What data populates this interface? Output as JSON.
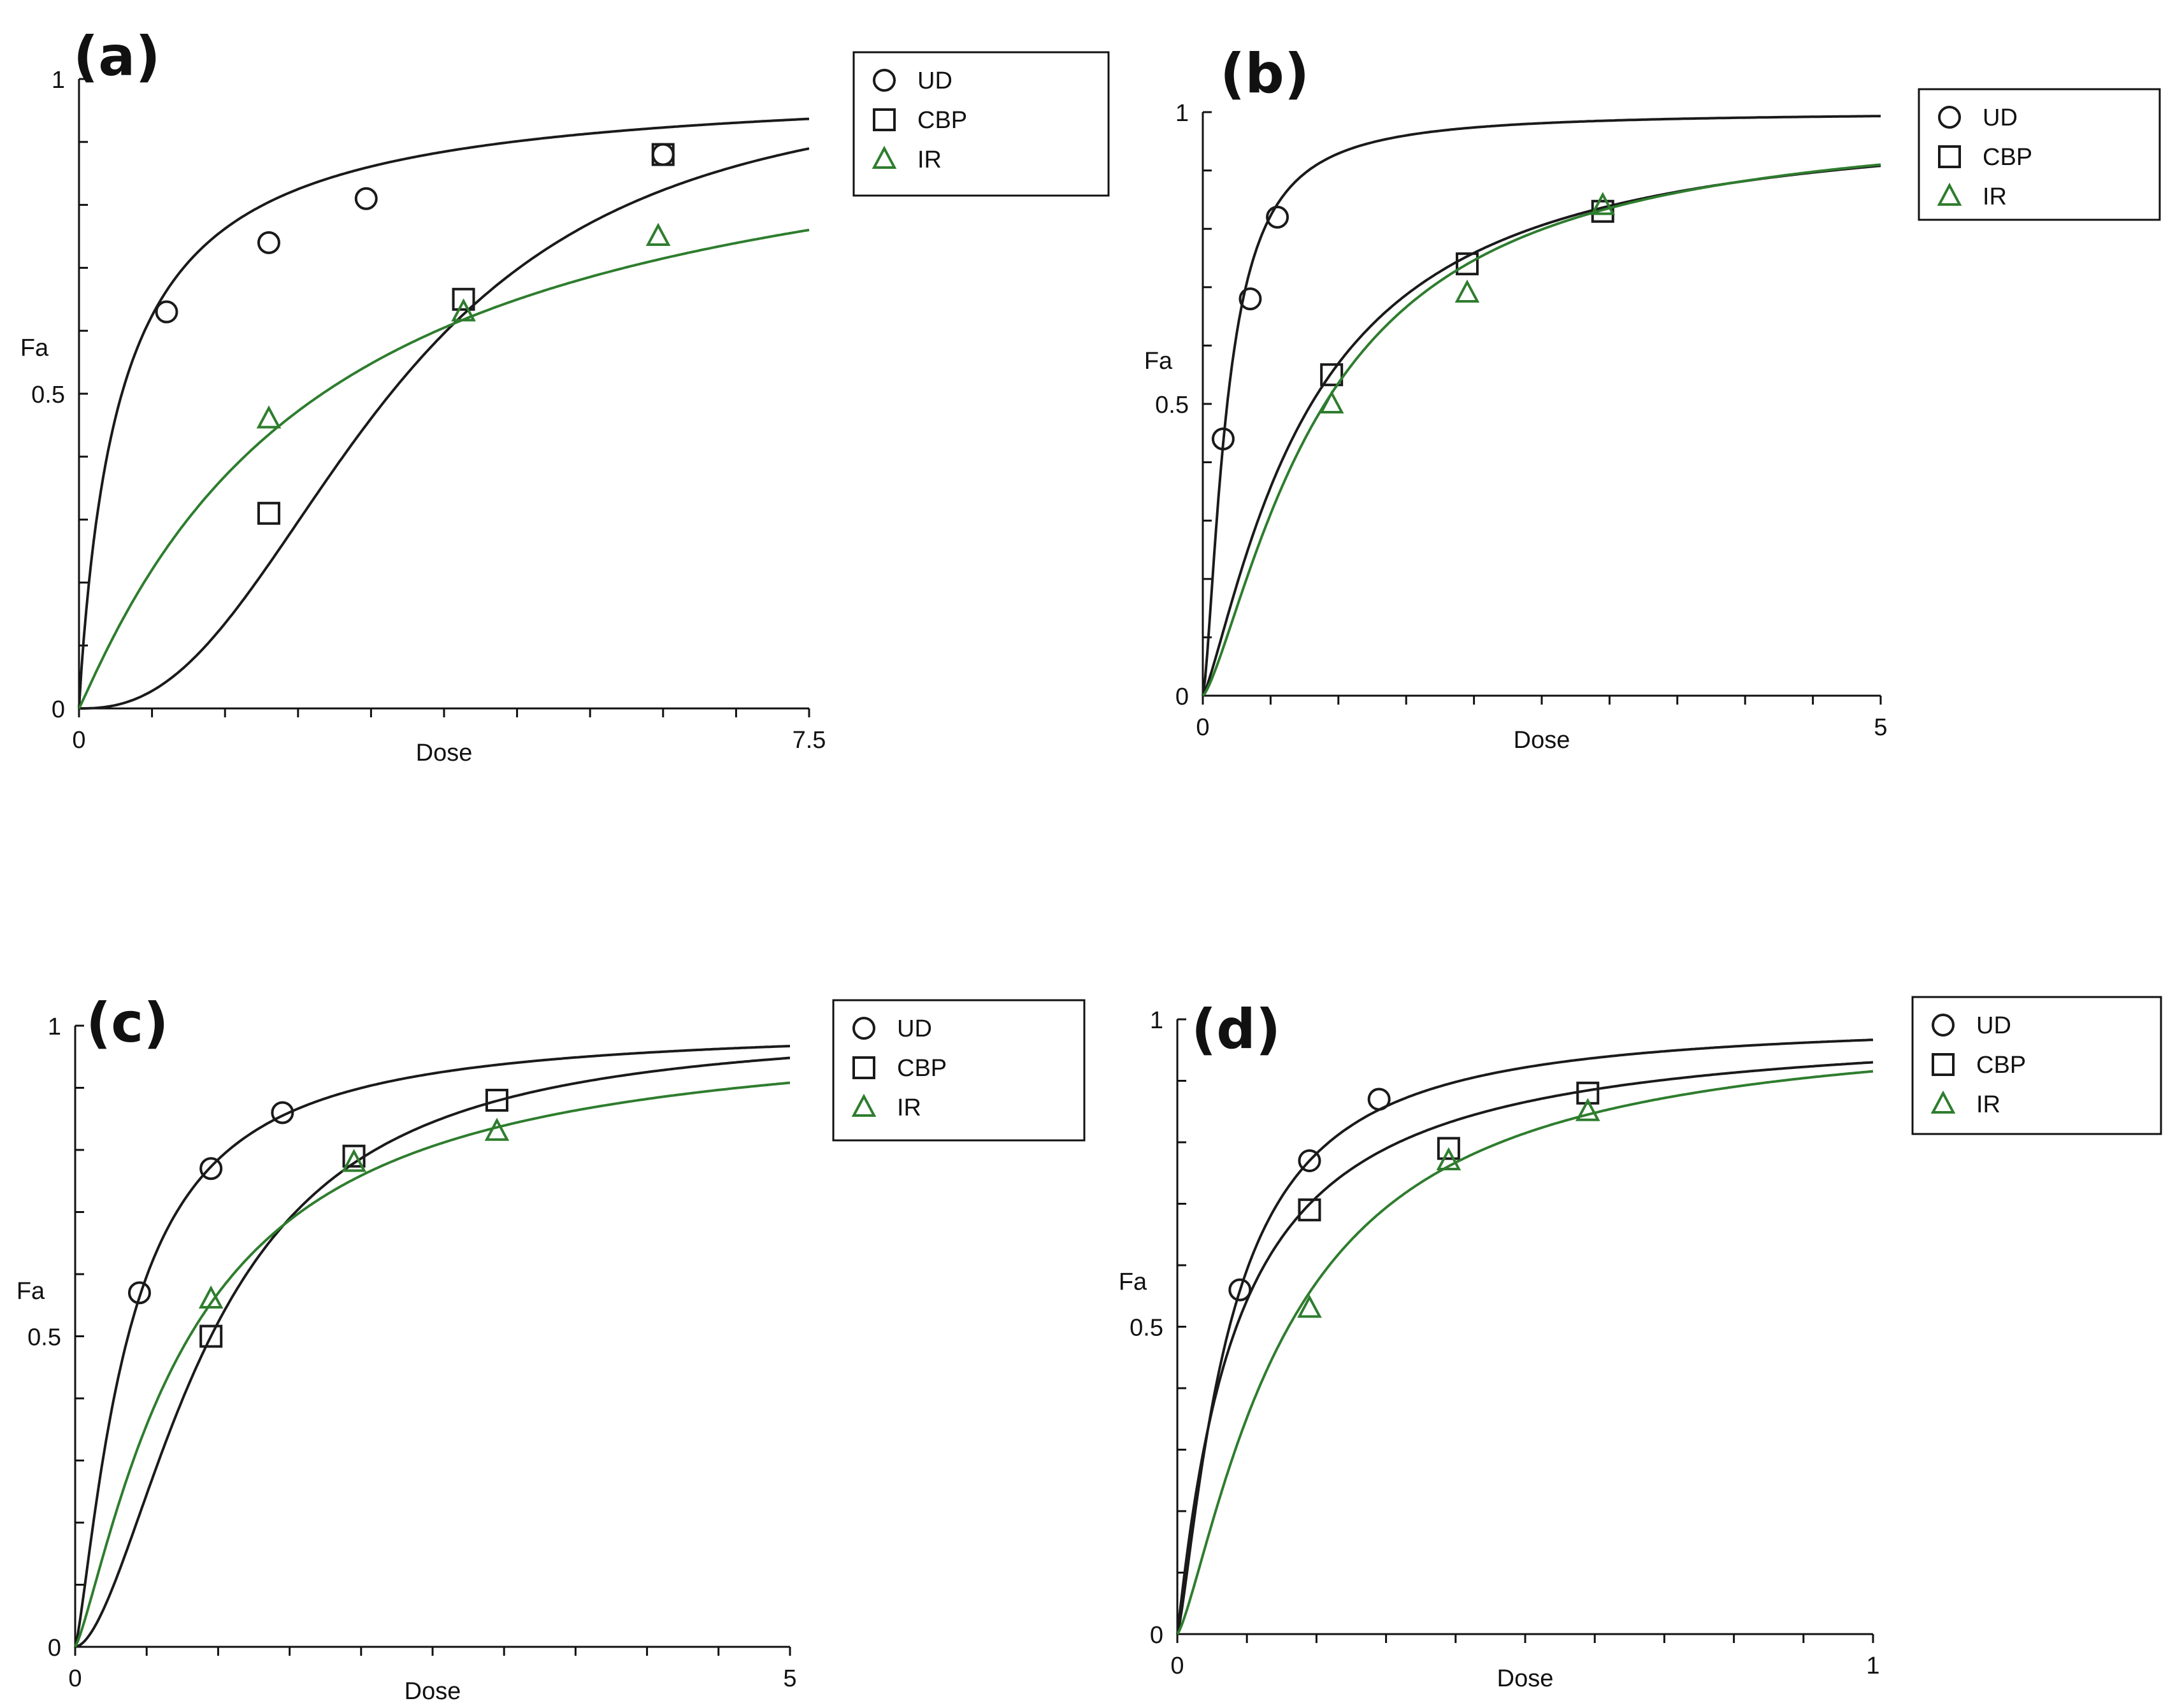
{
  "colors": {
    "black_curve": "#1a1a1a",
    "green_curve": "#2e7d2e",
    "axis": "#111111"
  },
  "chart_data": [
    {
      "type": "line",
      "panel_label": "(a)",
      "xlabel": "Dose",
      "ylabel": "Fa",
      "xlim": [
        0,
        7.5
      ],
      "ylim": [
        0,
        1
      ],
      "x_ticks": [
        "0",
        "7.5"
      ],
      "y_ticks": [
        "0",
        "0.5",
        "1"
      ],
      "legend_position": "top-right",
      "grid": false,
      "series": [
        {
          "name": "UD",
          "marker": "circle",
          "color": "#1a1a1a",
          "x": [
            0.9,
            1.95,
            2.95,
            6.0
          ],
          "y": [
            0.63,
            0.74,
            0.81,
            0.88
          ],
          "fit": {
            "dm": 0.44,
            "m": 0.95
          }
        },
        {
          "name": "CBP",
          "marker": "square",
          "color": "#1a1a1a",
          "x": [
            1.95,
            3.95,
            6.0
          ],
          "y": [
            0.31,
            0.65,
            0.88
          ],
          "fit": {
            "dm": 3.2,
            "m": 2.45
          }
        },
        {
          "name": "IR",
          "marker": "triangle",
          "color": "#2e7d2e",
          "x": [
            1.95,
            3.95,
            5.95
          ],
          "y": [
            0.46,
            0.63,
            0.75
          ],
          "fit": {
            "dm": 2.5,
            "m": 1.05
          }
        }
      ]
    },
    {
      "type": "line",
      "panel_label": "(b)",
      "xlabel": "Dose",
      "ylabel": "Fa",
      "xlim": [
        0,
        5
      ],
      "ylim": [
        0,
        1
      ],
      "x_ticks": [
        "0",
        "5"
      ],
      "y_ticks": [
        "0",
        "0.5",
        "1"
      ],
      "legend_position": "top-right",
      "grid": false,
      "series": [
        {
          "name": "UD",
          "marker": "circle",
          "color": "#1a1a1a",
          "x": [
            0.15,
            0.35,
            0.55
          ],
          "y": [
            0.44,
            0.68,
            0.82
          ],
          "fit": {
            "dm": 0.18,
            "m": 1.5
          }
        },
        {
          "name": "CBP",
          "marker": "square",
          "color": "#1a1a1a",
          "x": [
            0.95,
            1.95,
            2.95
          ],
          "y": [
            0.55,
            0.74,
            0.83
          ],
          "fit": {
            "dm": 0.8,
            "m": 1.25
          }
        },
        {
          "name": "IR",
          "marker": "triangle",
          "color": "#2e7d2e",
          "x": [
            0.95,
            1.95,
            2.95
          ],
          "y": [
            0.5,
            0.69,
            0.84
          ],
          "fit": {
            "dm": 0.9,
            "m": 1.35
          }
        }
      ]
    },
    {
      "type": "line",
      "panel_label": "(c)",
      "xlabel": "Dose",
      "ylabel": "Fa",
      "xlim": [
        0,
        5
      ],
      "ylim": [
        0,
        1
      ],
      "x_ticks": [
        "0",
        "5"
      ],
      "y_ticks": [
        "0",
        "0.5",
        "1"
      ],
      "legend_position": "top-right",
      "grid": false,
      "series": [
        {
          "name": "UD",
          "marker": "circle",
          "color": "#1a1a1a",
          "x": [
            0.45,
            0.95,
            1.45
          ],
          "y": [
            0.57,
            0.77,
            0.86
          ],
          "fit": {
            "dm": 0.37,
            "m": 1.3
          }
        },
        {
          "name": "CBP",
          "marker": "square",
          "color": "#1a1a1a",
          "x": [
            0.95,
            1.95,
            2.95
          ],
          "y": [
            0.5,
            0.79,
            0.88
          ],
          "fit": {
            "dm": 0.95,
            "m": 1.75
          }
        },
        {
          "name": "IR",
          "marker": "triangle",
          "color": "#2e7d2e",
          "x": [
            0.95,
            1.95,
            2.95
          ],
          "y": [
            0.56,
            0.78,
            0.83
          ],
          "fit": {
            "dm": 0.8,
            "m": 1.25
          }
        }
      ]
    },
    {
      "type": "line",
      "panel_label": "(d)",
      "xlabel": "Dose",
      "ylabel": "Fa",
      "xlim": [
        0,
        1
      ],
      "ylim": [
        0,
        1
      ],
      "x_ticks": [
        "0",
        "1"
      ],
      "y_ticks": [
        "0",
        "0.5",
        "1"
      ],
      "legend_position": "top-right",
      "grid": false,
      "series": [
        {
          "name": "UD",
          "marker": "circle",
          "color": "#1a1a1a",
          "x": [
            0.09,
            0.19,
            0.29
          ],
          "y": [
            0.56,
            0.77,
            0.87
          ],
          "fit": {
            "dm": 0.075,
            "m": 1.3
          }
        },
        {
          "name": "CBP",
          "marker": "square",
          "color": "#1a1a1a",
          "x": [
            0.19,
            0.39,
            0.59
          ],
          "y": [
            0.69,
            0.79,
            0.88
          ],
          "fit": {
            "dm": 0.085,
            "m": 1.05
          }
        },
        {
          "name": "IR",
          "marker": "triangle",
          "color": "#2e7d2e",
          "x": [
            0.19,
            0.39,
            0.59
          ],
          "y": [
            0.53,
            0.77,
            0.85
          ],
          "fit": {
            "dm": 0.16,
            "m": 1.3
          }
        }
      ]
    }
  ]
}
